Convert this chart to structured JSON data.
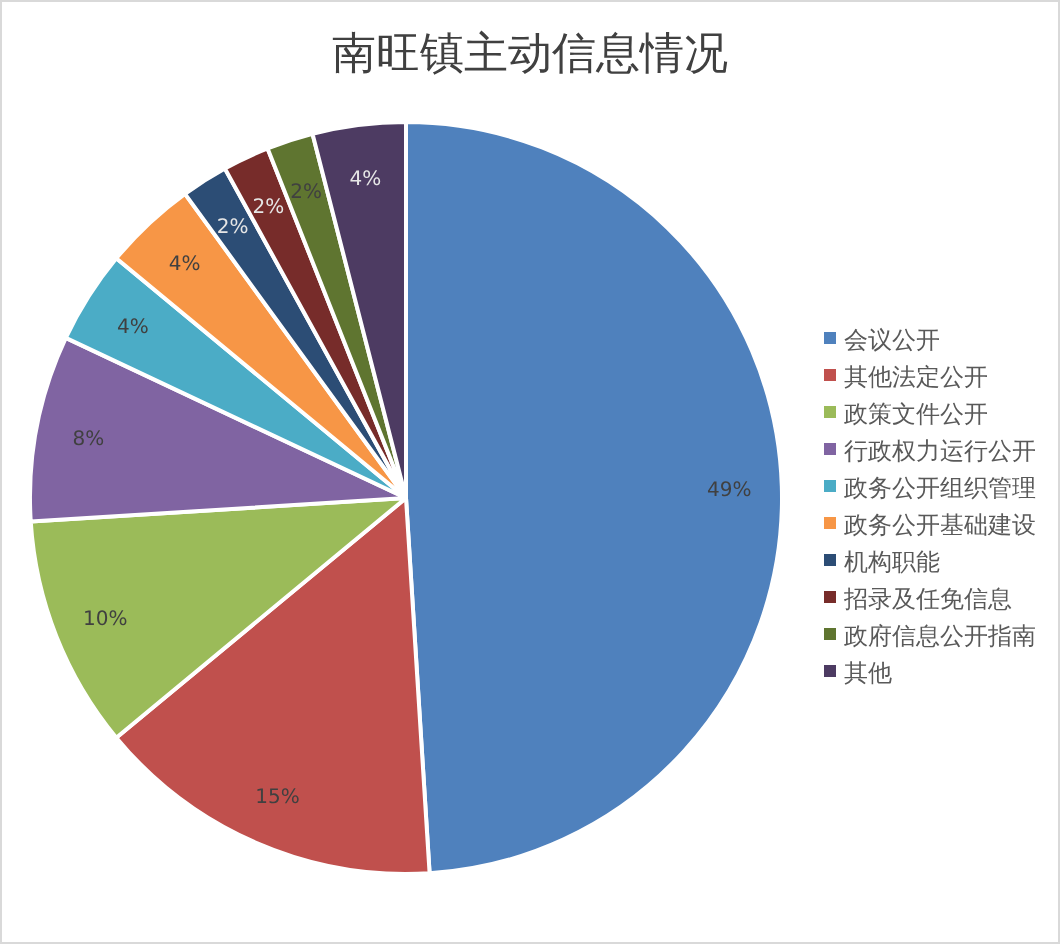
{
  "chart_data": {
    "type": "pie",
    "title": "南旺镇主动信息情况",
    "categories": [
      "会议公开",
      "其他法定公开",
      "政策文件公开",
      "行政权力运行公开",
      "政务公开组织管理",
      "政务公开基础建设",
      "机构职能",
      "招录及任免信息",
      "政府信息公开指南",
      "其他"
    ],
    "values": [
      49,
      15,
      10,
      8,
      4,
      4,
      2,
      2,
      2,
      4
    ],
    "colors": [
      "#4f81bd",
      "#c0504d",
      "#9bbb59",
      "#8064a2",
      "#4bacc6",
      "#f79646",
      "#2c4d75",
      "#772c2a",
      "#5f7530",
      "#4d3b62"
    ],
    "value_labels": [
      "49%",
      "15%",
      "10%",
      "8%",
      "4%",
      "4%",
      "2%",
      "2%",
      "2%",
      "4%"
    ],
    "legend": "right"
  }
}
